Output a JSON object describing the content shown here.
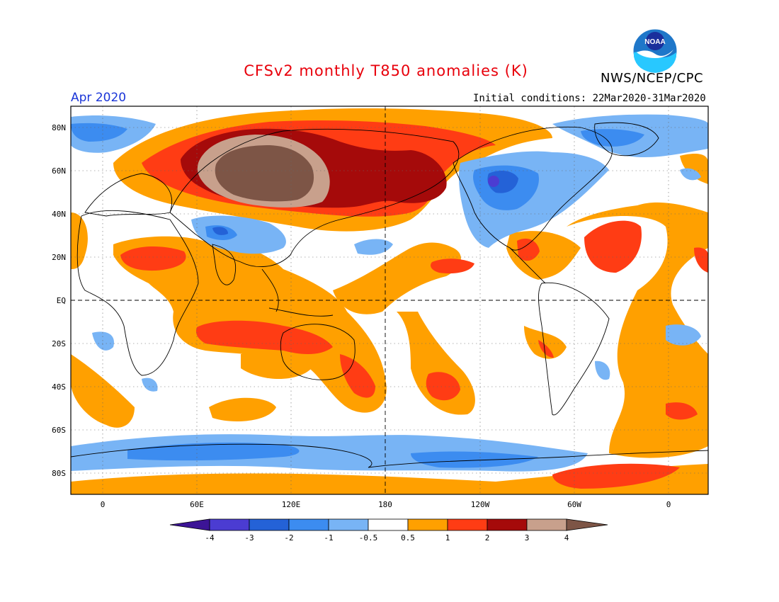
{
  "header": {
    "title": "CFSv2 monthly T850 anomalies (K)",
    "org": "NWS/NCEP/CPC",
    "month": "Apr 2020",
    "initial_conditions": "Initial conditions: 22Mar2020-31Mar2020",
    "logo_text": "NOAA"
  },
  "map": {
    "lat_labels": [
      "80N",
      "60N",
      "40N",
      "20N",
      "EQ",
      "20S",
      "40S",
      "60S",
      "80S"
    ],
    "lon_labels": [
      "0",
      "60E",
      "120E",
      "180",
      "120W",
      "60W",
      "0"
    ]
  },
  "colorbar": {
    "levels": [
      "-4",
      "-3",
      "-2",
      "-1",
      "-0.5",
      "0.5",
      "1",
      "2",
      "3",
      "4"
    ],
    "colors": {
      "lt_-4": "#3c1496",
      "-4_-3": "#4b3cd2",
      "-3_-2": "#2462d7",
      "-2_-1": "#3c8cf0",
      "-1_-0.5": "#78b4f5",
      "-0.5_0.5": "#ffffff",
      "0.5_1": "#ffa000",
      "1_2": "#ff3c14",
      "2_3": "#a50a0a",
      "3_4": "#c8a08c",
      "gt_4": "#7d5546"
    }
  }
}
